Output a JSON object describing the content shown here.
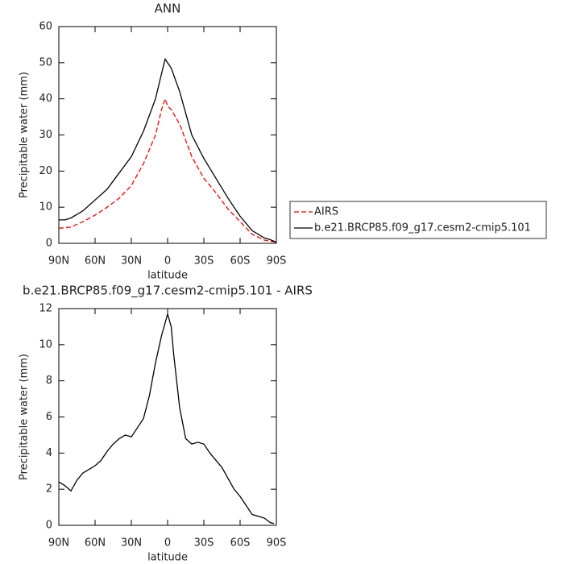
{
  "chart_data": [
    {
      "type": "line",
      "title": "ANN",
      "xlabel": "latitude",
      "ylabel": "Precipitable water (mm)",
      "x": [
        90,
        85,
        80,
        70,
        60,
        50,
        40,
        30,
        20,
        10,
        5,
        2,
        0,
        -3,
        -10,
        -20,
        -30,
        -40,
        -50,
        -60,
        -70,
        -80,
        -85,
        -90
      ],
      "series": [
        {
          "name": "AIRS",
          "color": "#ff0000",
          "dash": true,
          "values": [
            4.2,
            4.3,
            4.5,
            6,
            7.8,
            10,
            12.5,
            16,
            22,
            30,
            37,
            40,
            38,
            37,
            33,
            24,
            18,
            14,
            9.5,
            6,
            2.5,
            0.9,
            0.6,
            0.3
          ]
        },
        {
          "name": "b.e21.BRCP85.f09_g17.cesm2-cmip5.101",
          "color": "#000000",
          "dash": false,
          "values": [
            6.5,
            6.5,
            7,
            9,
            12,
            15,
            19.5,
            24,
            31,
            40,
            47,
            51,
            50,
            48.5,
            42,
            30,
            23.5,
            18,
            12.5,
            7.5,
            3.5,
            1.5,
            1,
            0.3
          ]
        }
      ],
      "xlim": [
        90,
        -90
      ],
      "xticks": [
        {
          "value": 90,
          "label": "90N"
        },
        {
          "value": 60,
          "label": "60N"
        },
        {
          "value": 30,
          "label": "30N"
        },
        0,
        {
          "value": -30,
          "label": "30S"
        },
        {
          "value": -60,
          "label": "60S"
        },
        {
          "value": -90,
          "label": "90S"
        }
      ],
      "ylim": [
        0,
        60
      ],
      "yticks": [
        0,
        10,
        20,
        30,
        40,
        50,
        60
      ],
      "legend": "right"
    },
    {
      "type": "line",
      "title": "b.e21.BRCP85.f09_g17.cesm2-cmip5.101 - AIRS",
      "xlabel": "latitude",
      "ylabel": "Precipitable water (mm)",
      "x": [
        90,
        85,
        80,
        75,
        70,
        65,
        60,
        55,
        50,
        45,
        40,
        35,
        30,
        25,
        20,
        15,
        10,
        5,
        0,
        -3,
        -5,
        -10,
        -15,
        -20,
        -25,
        -30,
        -35,
        -40,
        -45,
        -50,
        -55,
        -60,
        -65,
        -70,
        -75,
        -80,
        -85,
        -88
      ],
      "series": [
        {
          "color": "#000000",
          "dash": false,
          "values": [
            2.4,
            2.2,
            1.9,
            2.5,
            2.9,
            3.1,
            3.3,
            3.6,
            4.1,
            4.5,
            4.8,
            5.0,
            4.9,
            5.4,
            5.9,
            7.2,
            9.0,
            10.5,
            11.7,
            11.0,
            9.5,
            6.5,
            4.8,
            4.5,
            4.6,
            4.5,
            4.0,
            3.6,
            3.2,
            2.6,
            2.0,
            1.6,
            1.1,
            0.6,
            0.5,
            0.4,
            0.15,
            0.1
          ]
        }
      ],
      "xlim": [
        90,
        -90
      ],
      "xticks": [
        {
          "value": 90,
          "label": "90N"
        },
        {
          "value": 60,
          "label": "60N"
        },
        {
          "value": 30,
          "label": "30N"
        },
        0,
        {
          "value": -30,
          "label": "30S"
        },
        {
          "value": -60,
          "label": "60S"
        },
        {
          "value": -90,
          "label": "90S"
        }
      ],
      "ylim": [
        0,
        12
      ],
      "yticks": [
        0,
        2,
        4,
        6,
        8,
        10,
        12
      ]
    }
  ]
}
